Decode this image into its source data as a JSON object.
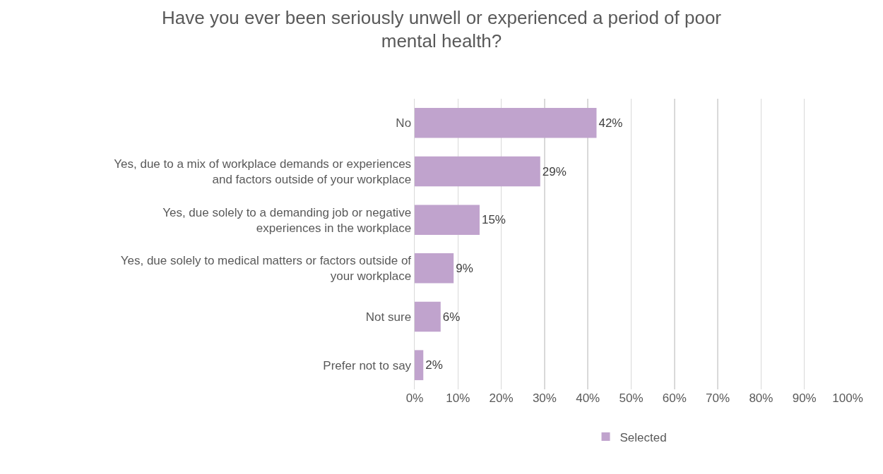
{
  "chart_data": {
    "type": "bar",
    "orientation": "horizontal",
    "title": "Have you ever been seriously unwell or experienced a period of poor mental health?",
    "categories": [
      "No",
      "Yes, due to a mix of workplace demands or experiences and factors outside of your workplace",
      "Yes, due solely to a demanding job or negative experiences in the workplace",
      "Yes, due solely to medical matters or factors outside of your workplace",
      "Not sure",
      "Prefer not to say"
    ],
    "series": [
      {
        "name": "Selected",
        "color": "#c0a3cd",
        "values": [
          42,
          29,
          15,
          9,
          6,
          2
        ],
        "value_labels": [
          "42%",
          "29%",
          "15%",
          "9%",
          "6%",
          "2%"
        ]
      }
    ],
    "xlim": [
      0,
      100
    ],
    "xticks": [
      {
        "value": 0,
        "label": "0%"
      },
      {
        "value": 10,
        "label": "10%"
      },
      {
        "value": 20,
        "label": "20%"
      },
      {
        "value": 30,
        "label": "30%"
      },
      {
        "value": 40,
        "label": "40%"
      },
      {
        "value": 50,
        "label": "50%"
      },
      {
        "value": 60,
        "label": "60%"
      },
      {
        "value": 70,
        "label": "70%"
      },
      {
        "value": 80,
        "label": "80%"
      },
      {
        "value": 90,
        "label": "90%"
      },
      {
        "value": 100,
        "label": "100%"
      }
    ],
    "grid": "x",
    "legend": "bottom"
  }
}
